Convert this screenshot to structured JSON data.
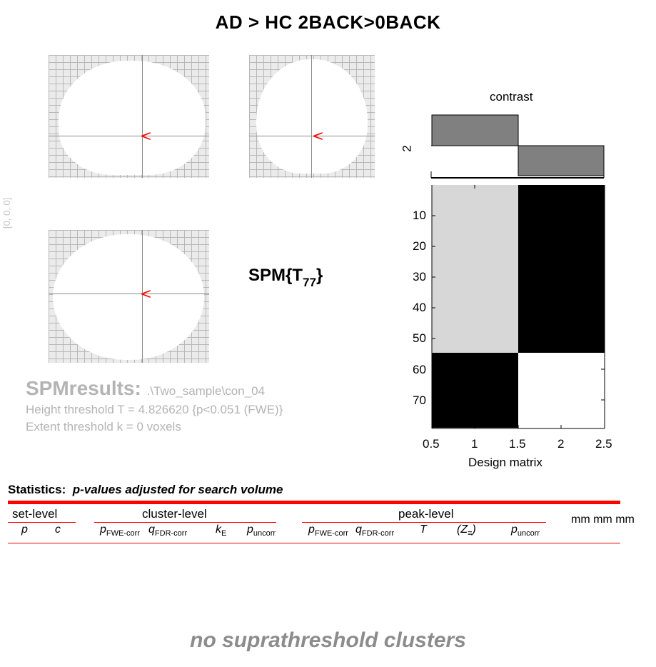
{
  "window": {
    "title": "AD > HC 2BACK>0BACK"
  },
  "glass_brain": {
    "coordinates": "[0, 0, 0]",
    "cursor_glyph": "<",
    "cursor_color": "#ff0000"
  },
  "stat_label": {
    "prefix": "SPM{T",
    "df": "77",
    "suffix": "}"
  },
  "contrast": {
    "title": "contrast",
    "axis_label": "2"
  },
  "design_matrix": {
    "xlabel": "Design matrix",
    "y_ticks": [
      "10",
      "20",
      "30",
      "40",
      "50",
      "60",
      "70"
    ],
    "x_ticks": [
      "0.5",
      "1",
      "1.5",
      "2",
      "2.5"
    ]
  },
  "results": {
    "title": "SPMresults:",
    "path": ".\\Two_sample\\con_04",
    "height_threshold": "Height threshold T = 4.826620  {p<0.051 (FWE)}",
    "extent_threshold": "Extent threshold k = 0 voxels"
  },
  "statistics": {
    "heading": "Statistics:",
    "subheading": "p-values adjusted for search volume",
    "groups": {
      "set": "set-level",
      "cluster": "cluster-level",
      "peak": "peak-level",
      "mm": "mm mm mm"
    },
    "set_cols": [
      "p",
      "c"
    ],
    "cluster_cols": {
      "p": "p",
      "p_sub": "FWE-corr",
      "q": "q",
      "q_sub": "FDR-corr",
      "k": "k",
      "k_sub": "E",
      "pu": "p",
      "pu_sub": "uncorr"
    },
    "peak_cols": {
      "p": "p",
      "p_sub": "FWE-corr",
      "q": "q",
      "q_sub": "FDR-corr",
      "t": "T",
      "z": "(Z",
      "z_sub": "≡",
      "z_close": ")",
      "pu": "p",
      "pu_sub": "uncorr"
    },
    "empty_message": "no suprathreshold clusters"
  },
  "colors": {
    "rule": "#ff0000",
    "bar_fill": "#808080",
    "matrix_light": "#d7d7d7",
    "matrix_dark": "#000000",
    "muted_text": "#b4b4b4"
  }
}
